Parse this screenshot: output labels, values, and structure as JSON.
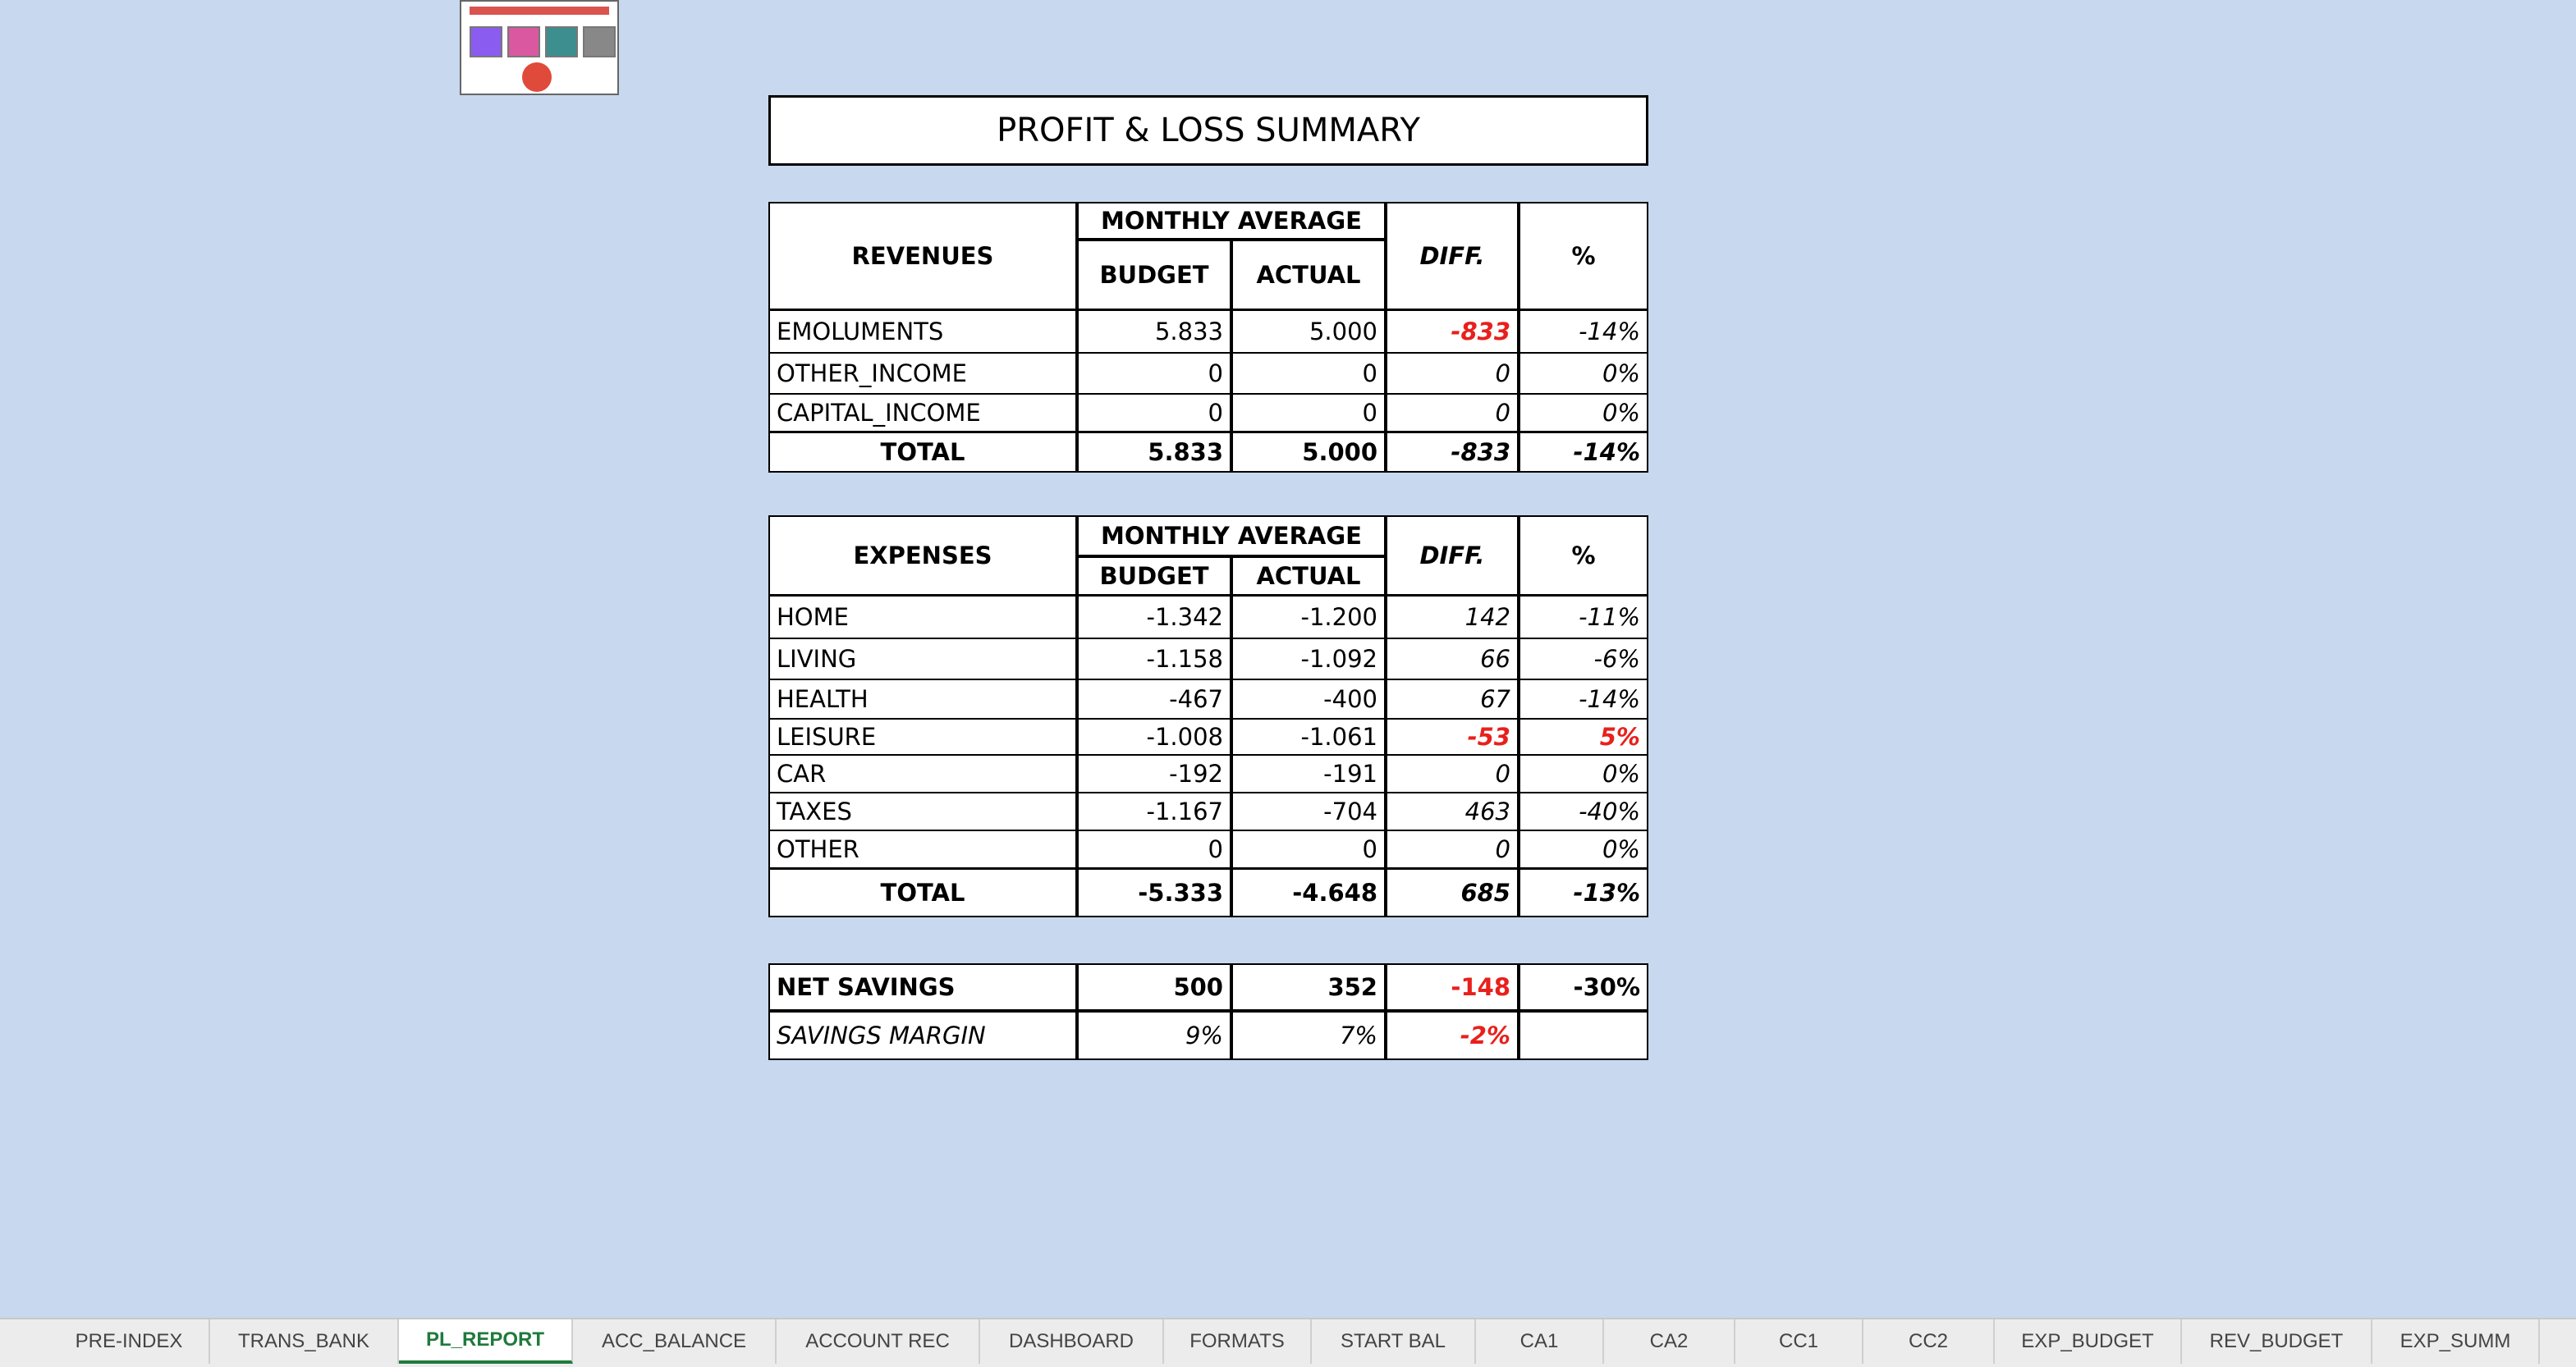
{
  "title": "PROFIT & LOSS SUMMARY",
  "revenues": {
    "header": "REVENUES",
    "group": "MONTHLY AVERAGE",
    "columns": [
      "BUDGET",
      "ACTUAL",
      "DIFF.",
      "%"
    ],
    "rows": [
      [
        "EMOLUMENTS",
        "5.833",
        "5.000",
        "-833",
        "-14%"
      ],
      [
        "OTHER_INCOME",
        "0",
        "0",
        "0",
        "0%"
      ],
      [
        "CAPITAL_INCOME",
        "0",
        "0",
        "0",
        "0%"
      ]
    ],
    "total": [
      "TOTAL",
      "5.833",
      "5.000",
      "-833",
      "-14%"
    ]
  },
  "expenses": {
    "header": "EXPENSES",
    "group": "MONTHLY AVERAGE",
    "columns": [
      "BUDGET",
      "ACTUAL",
      "DIFF.",
      "%"
    ],
    "rows": [
      [
        "HOME",
        "-1.342",
        "-1.200",
        "142",
        "-11%"
      ],
      [
        "LIVING",
        "-1.158",
        "-1.092",
        "66",
        "-6%"
      ],
      [
        "HEALTH",
        "-467",
        "-400",
        "67",
        "-14%"
      ],
      [
        "LEISURE",
        "-1.008",
        "-1.061",
        "-53",
        "5%"
      ],
      [
        "CAR",
        "-192",
        "-191",
        "0",
        "0%"
      ],
      [
        "TAXES",
        "-1.167",
        "-704",
        "463",
        "-40%"
      ],
      [
        "OTHER",
        "0",
        "0",
        "0",
        "0%"
      ]
    ],
    "total": [
      "TOTAL",
      "-5.333",
      "-4.648",
      "685",
      "-13%"
    ]
  },
  "summary": {
    "rows": [
      [
        "NET SAVINGS",
        "500",
        "352",
        "-148",
        "-30%"
      ],
      [
        "SAVINGS MARGIN",
        "9%",
        "7%",
        "-2%"
      ]
    ]
  },
  "tabs": [
    "PRE-INDEX",
    "TRANS_BANK",
    "PL_REPORT",
    "ACC_BALANCE",
    "ACCOUNT REC",
    "DASHBOARD",
    "FORMATS",
    "START BAL",
    "CA1",
    "CA2",
    "CC1",
    "CC2",
    "EXP_BUDGET",
    "REV_BUDGET",
    "EXP_SUMM"
  ]
}
